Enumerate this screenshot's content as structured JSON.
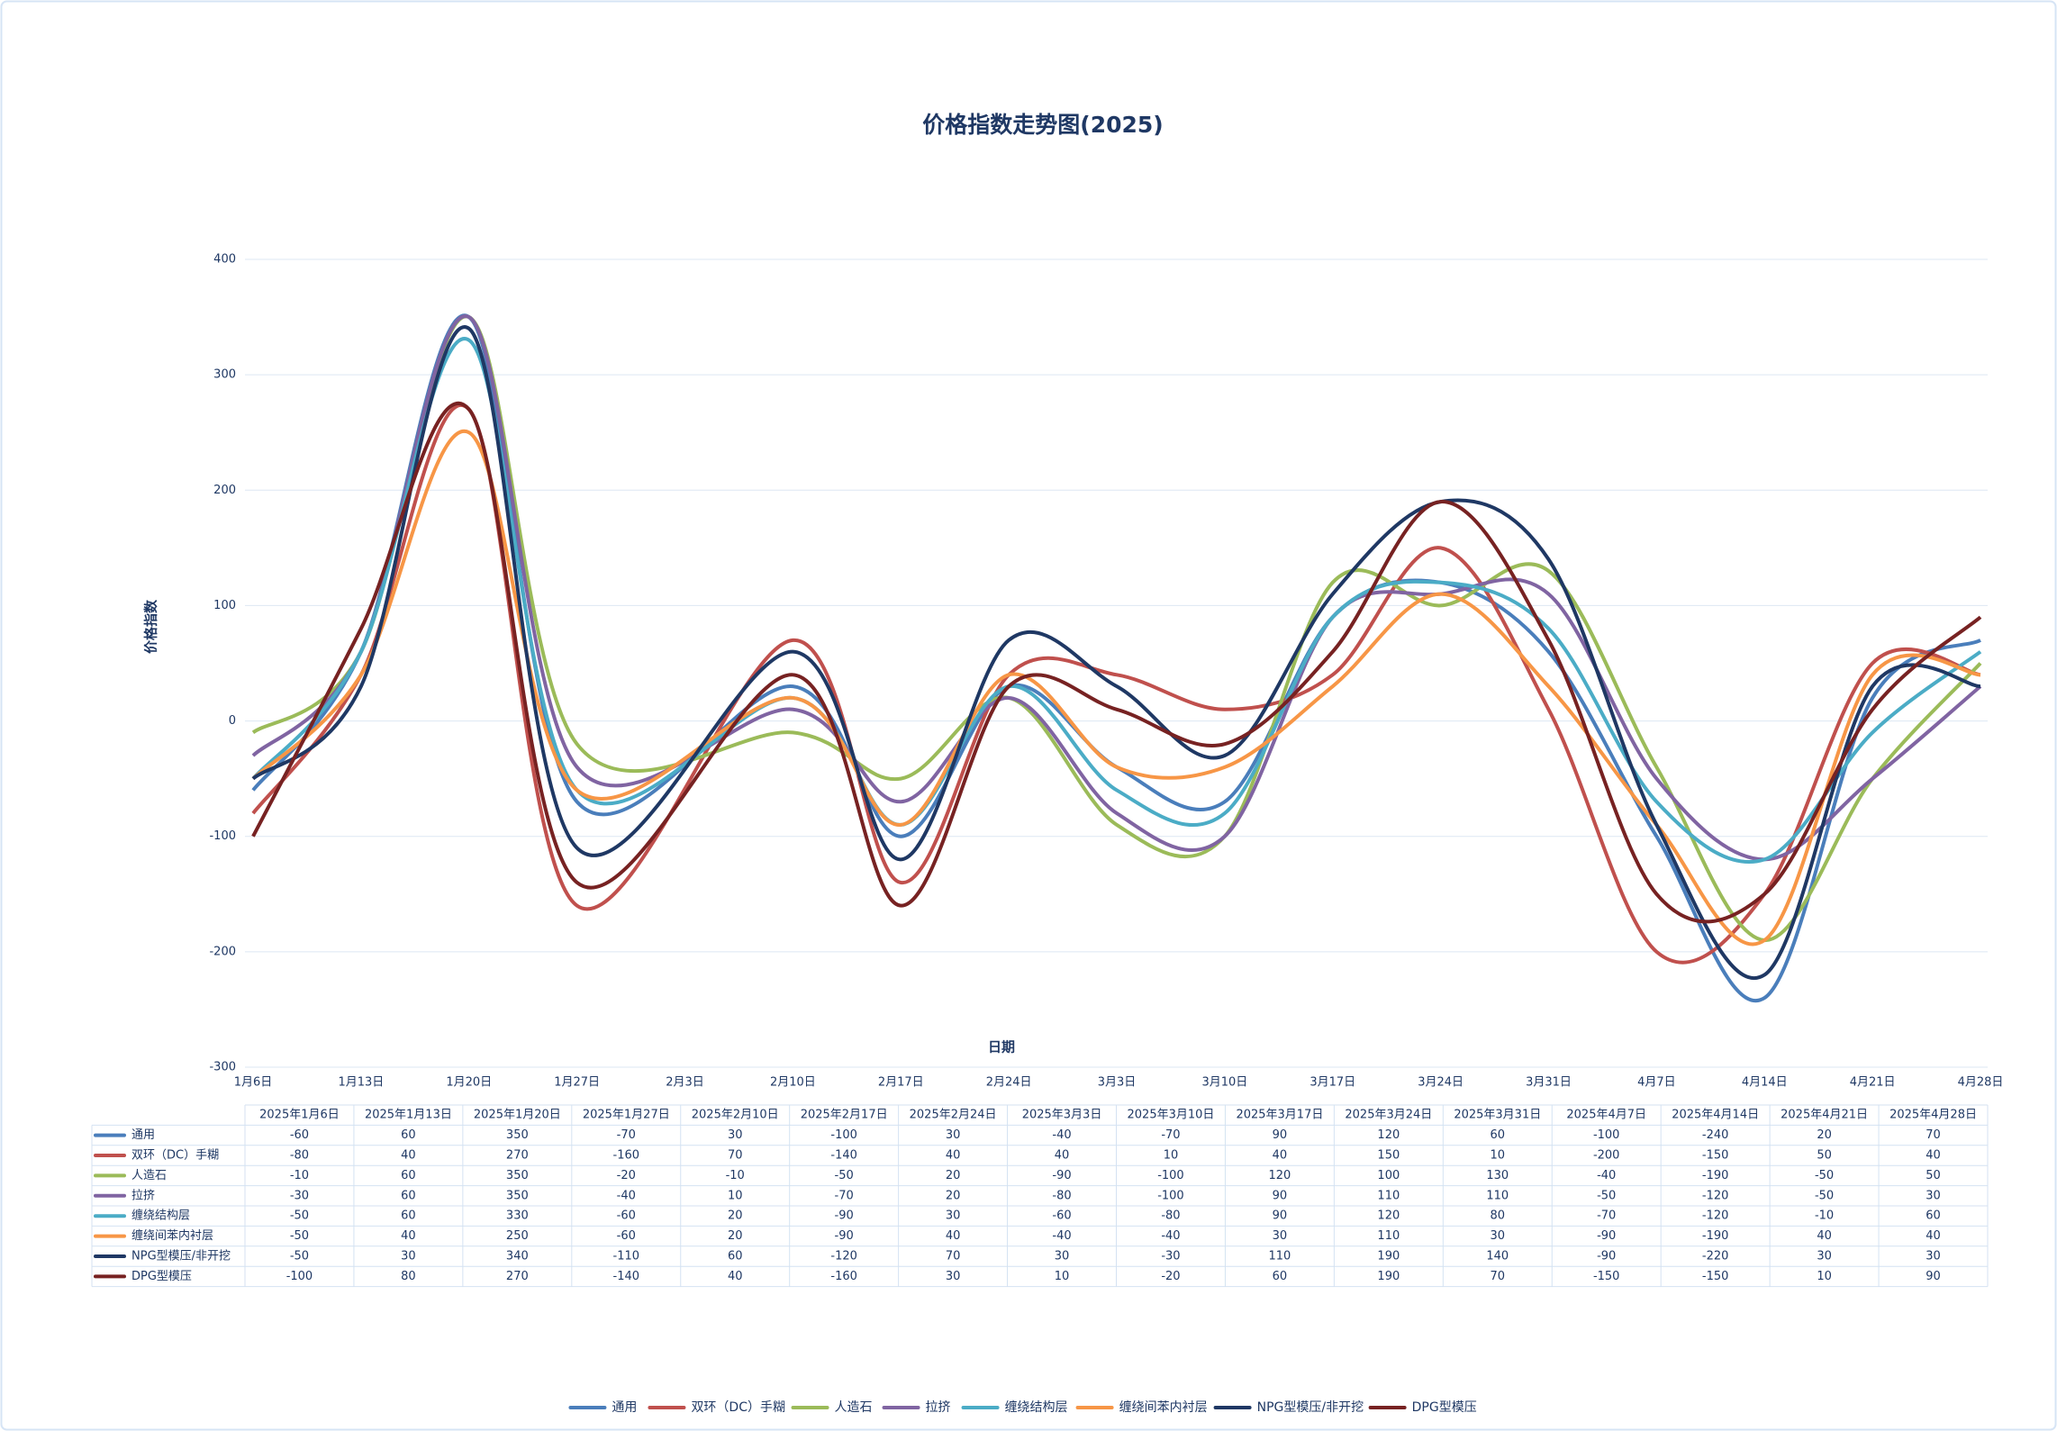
{
  "chart_data": {
    "type": "line",
    "title": "价格指数走势图(2025)",
    "x_label": "日期",
    "y_label": "价格指数",
    "x": [
      "2025年1月6日",
      "2025年1月13日",
      "2025年1月20日",
      "2025年1月27日",
      "2025年2月10日",
      "2025年2月17日",
      "2025年2月24日",
      "2025年3月3日",
      "2025年3月10日",
      "2025年3月17日",
      "2025年3月24日",
      "2025年3月31日",
      "2025年4月7日",
      "2025年4月14日",
      "2025年4月21日",
      "2025年4月28日"
    ],
    "xlim": [
      "2025-01-06",
      "2025-04-28"
    ],
    "xticks": [
      {
        "value": "2025-01-06",
        "label": "1月6日"
      },
      {
        "value": "2025-01-13",
        "label": "1月13日"
      },
      {
        "value": "2025-01-20",
        "label": "1月20日"
      },
      {
        "value": "2025-01-27",
        "label": "1月27日"
      },
      {
        "value": "2025-02-03",
        "label": "2月3日"
      },
      {
        "value": "2025-02-10",
        "label": "2月10日"
      },
      {
        "value": "2025-02-17",
        "label": "2月17日"
      },
      {
        "value": "2025-02-24",
        "label": "2月24日"
      },
      {
        "value": "2025-03-03",
        "label": "3月3日"
      },
      {
        "value": "2025-03-10",
        "label": "3月10日"
      },
      {
        "value": "2025-03-17",
        "label": "3月17日"
      },
      {
        "value": "2025-03-24",
        "label": "3月24日"
      },
      {
        "value": "2025-03-31",
        "label": "3月31日"
      },
      {
        "value": "2025-04-07",
        "label": "4月7日"
      },
      {
        "value": "2025-04-14",
        "label": "4月14日"
      },
      {
        "value": "2025-04-21",
        "label": "4月21日"
      },
      {
        "value": "2025-04-28",
        "label": "4月28日"
      }
    ],
    "ylim": [
      -300,
      400
    ],
    "yticks": [
      -300,
      -200,
      -100,
      0,
      100,
      200,
      300,
      400
    ],
    "grid": true,
    "smooth": true,
    "legend": "bottom",
    "series": [
      {
        "name": "通用",
        "color": "#4a7ebb",
        "values": [
          -60,
          60,
          350,
          -70,
          30,
          -100,
          30,
          -40,
          -70,
          90,
          120,
          60,
          -100,
          -240,
          20,
          70
        ]
      },
      {
        "name": "双环（DC）手糊",
        "color": "#c0504d",
        "values": [
          -80,
          40,
          270,
          -160,
          70,
          -140,
          40,
          40,
          10,
          40,
          150,
          10,
          -200,
          -150,
          50,
          40
        ]
      },
      {
        "name": "人造石",
        "color": "#9bbb59",
        "values": [
          -10,
          60,
          350,
          -20,
          -10,
          -50,
          20,
          -90,
          -100,
          120,
          100,
          130,
          -40,
          -190,
          -50,
          50
        ]
      },
      {
        "name": "拉挤",
        "color": "#8064a2",
        "values": [
          -30,
          60,
          350,
          -40,
          10,
          -70,
          20,
          -80,
          -100,
          90,
          110,
          110,
          -50,
          -120,
          -50,
          30
        ]
      },
      {
        "name": "缠绕结构层",
        "color": "#4bacc6",
        "values": [
          -50,
          60,
          330,
          -60,
          20,
          -90,
          30,
          -60,
          -80,
          90,
          120,
          80,
          -70,
          -120,
          -10,
          60
        ]
      },
      {
        "name": "缠绕间苯内衬层",
        "color": "#f79646",
        "values": [
          -50,
          40,
          250,
          -60,
          20,
          -90,
          40,
          -40,
          -40,
          30,
          110,
          30,
          -90,
          -190,
          40,
          40
        ]
      },
      {
        "name": "NPG型模压/非开挖",
        "color": "#1f3864",
        "values": [
          -50,
          30,
          340,
          -110,
          60,
          -120,
          70,
          30,
          -30,
          110,
          190,
          140,
          -90,
          -220,
          30,
          30
        ]
      },
      {
        "name": "DPG型模压",
        "color": "#772222",
        "values": [
          -100,
          80,
          270,
          -140,
          40,
          -160,
          30,
          10,
          -20,
          60,
          190,
          70,
          -150,
          -150,
          10,
          90
        ]
      }
    ]
  }
}
